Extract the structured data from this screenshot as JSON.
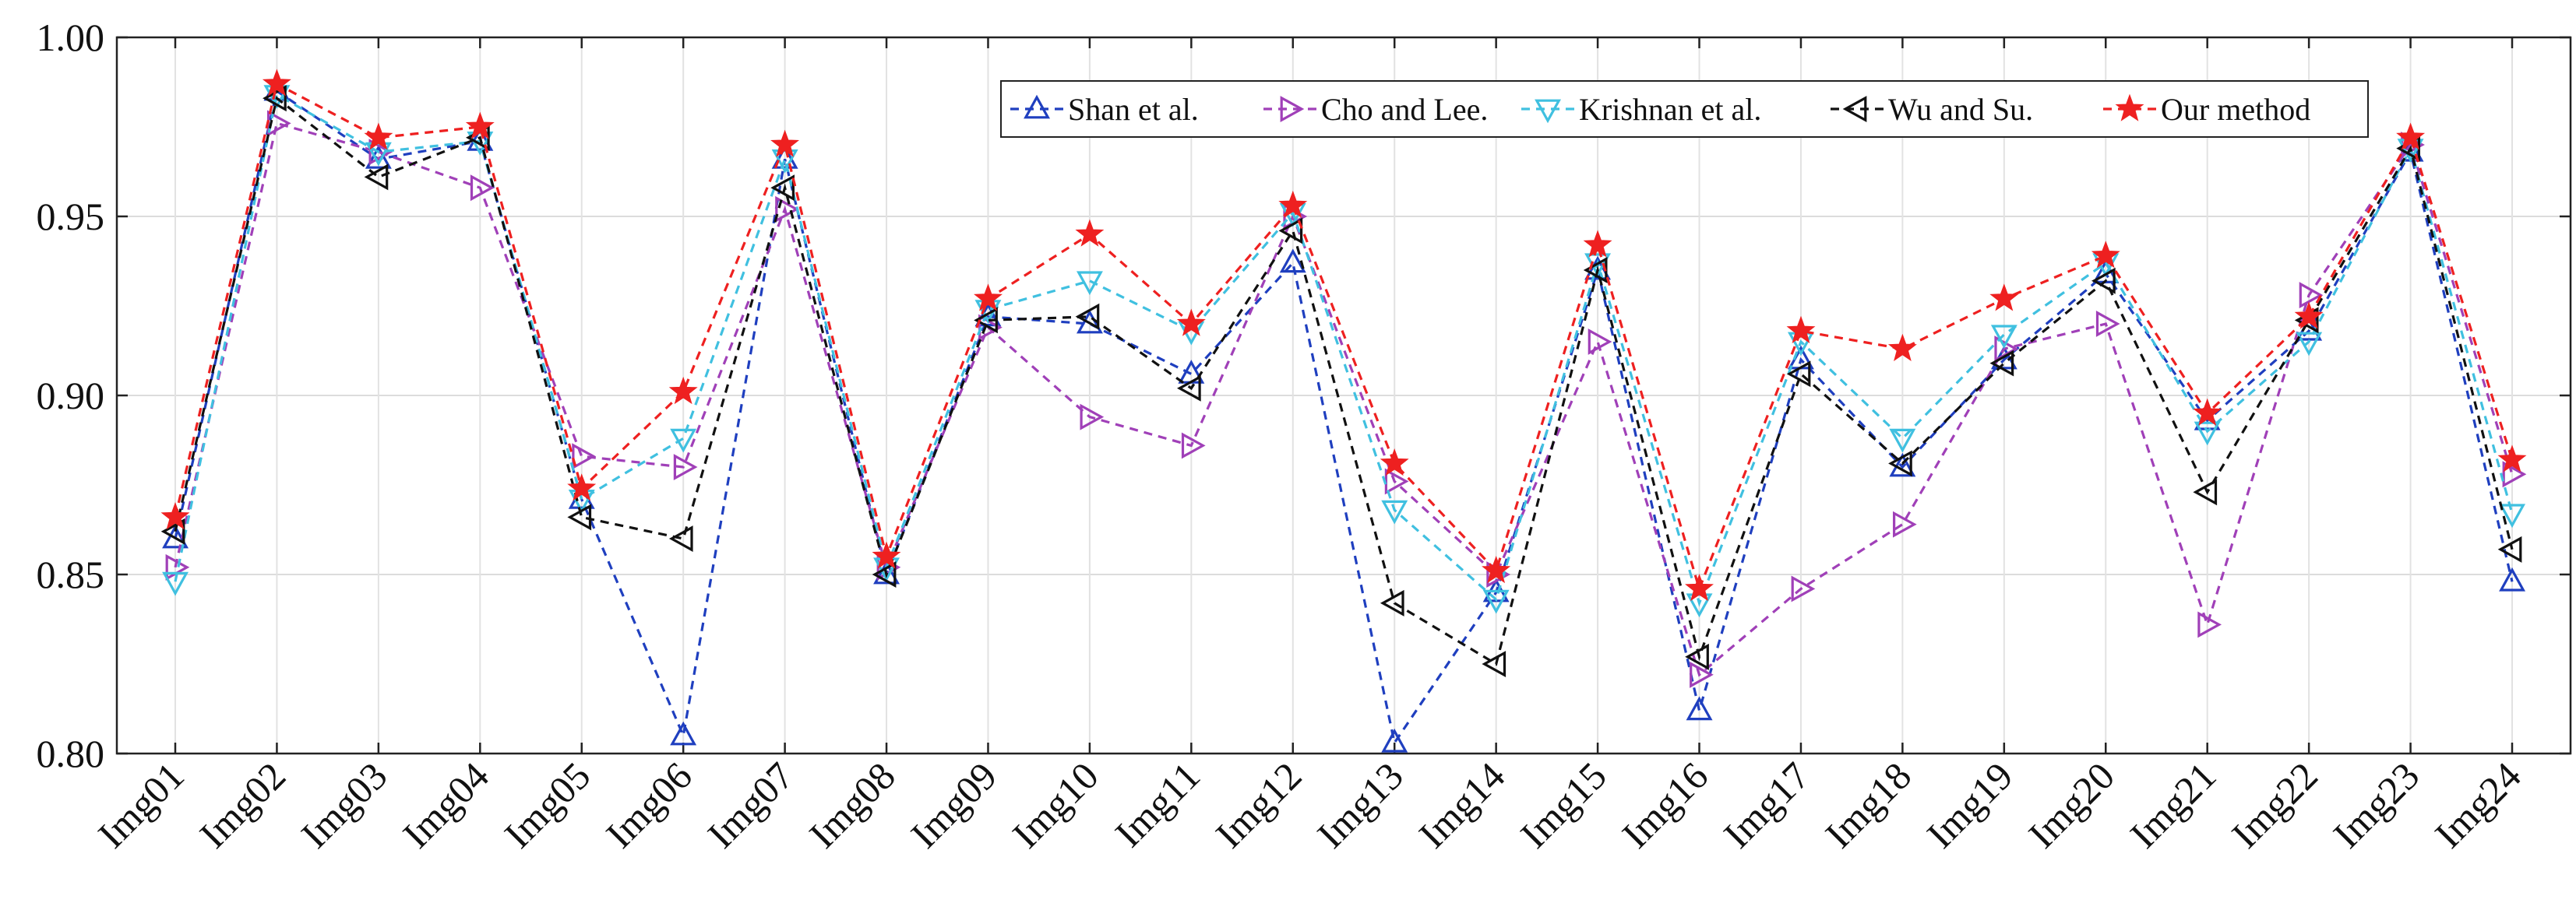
{
  "chart_data": {
    "type": "line",
    "title": "",
    "xlabel": "",
    "ylabel": "",
    "ylim": [
      0.8,
      1.0
    ],
    "yticks": [
      "0.80",
      "0.85",
      "0.90",
      "0.95",
      "1.00"
    ],
    "grid": true,
    "legend_position": "top-right",
    "categories": [
      "Img01",
      "Img02",
      "Img03",
      "Img04",
      "Img05",
      "Img06",
      "Img07",
      "Img08",
      "Img09",
      "Img10",
      "Img11",
      "Img12",
      "Img13",
      "Img14",
      "Img15",
      "Img16",
      "Img17",
      "Img18",
      "Img19",
      "Img20",
      "Img21",
      "Img22",
      "Img23",
      "Img24"
    ],
    "series": [
      {
        "name": "Shan et al.",
        "color": "#1f3fbf",
        "marker": "triangle-up",
        "values": [
          0.86,
          0.985,
          0.966,
          0.971,
          0.871,
          0.805,
          0.966,
          0.85,
          0.922,
          0.92,
          0.906,
          0.937,
          0.803,
          0.845,
          0.935,
          0.812,
          0.91,
          0.88,
          0.91,
          0.934,
          0.893,
          0.918,
          0.968,
          0.848
        ]
      },
      {
        "name": "Cho and Lee.",
        "color": "#a040b8",
        "marker": "triangle-right",
        "values": [
          0.852,
          0.976,
          0.968,
          0.958,
          0.883,
          0.88,
          0.952,
          0.852,
          0.919,
          0.894,
          0.886,
          0.95,
          0.876,
          0.85,
          0.915,
          0.822,
          0.846,
          0.864,
          0.913,
          0.92,
          0.836,
          0.928,
          0.97,
          0.878
        ]
      },
      {
        "name": "Krishnan et al.",
        "color": "#40c0e0",
        "marker": "triangle-down",
        "values": [
          0.848,
          0.984,
          0.968,
          0.971,
          0.871,
          0.888,
          0.966,
          0.852,
          0.924,
          0.932,
          0.918,
          0.951,
          0.868,
          0.843,
          0.937,
          0.842,
          0.915,
          0.888,
          0.917,
          0.937,
          0.89,
          0.915,
          0.969,
          0.867
        ]
      },
      {
        "name": "Wu and Su.",
        "color": "#111111",
        "marker": "triangle-left",
        "values": [
          0.862,
          0.983,
          0.961,
          0.972,
          0.866,
          0.86,
          0.958,
          0.85,
          0.921,
          0.922,
          0.902,
          0.946,
          0.842,
          0.825,
          0.935,
          0.827,
          0.906,
          0.881,
          0.909,
          0.932,
          0.873,
          0.921,
          0.969,
          0.857
        ]
      },
      {
        "name": "Our method",
        "color": "#ee2020",
        "marker": "star",
        "values": [
          0.866,
          0.987,
          0.972,
          0.975,
          0.874,
          0.901,
          0.97,
          0.855,
          0.927,
          0.945,
          0.92,
          0.953,
          0.881,
          0.851,
          0.942,
          0.846,
          0.918,
          0.913,
          0.927,
          0.939,
          0.895,
          0.922,
          0.972,
          0.882
        ]
      }
    ]
  }
}
